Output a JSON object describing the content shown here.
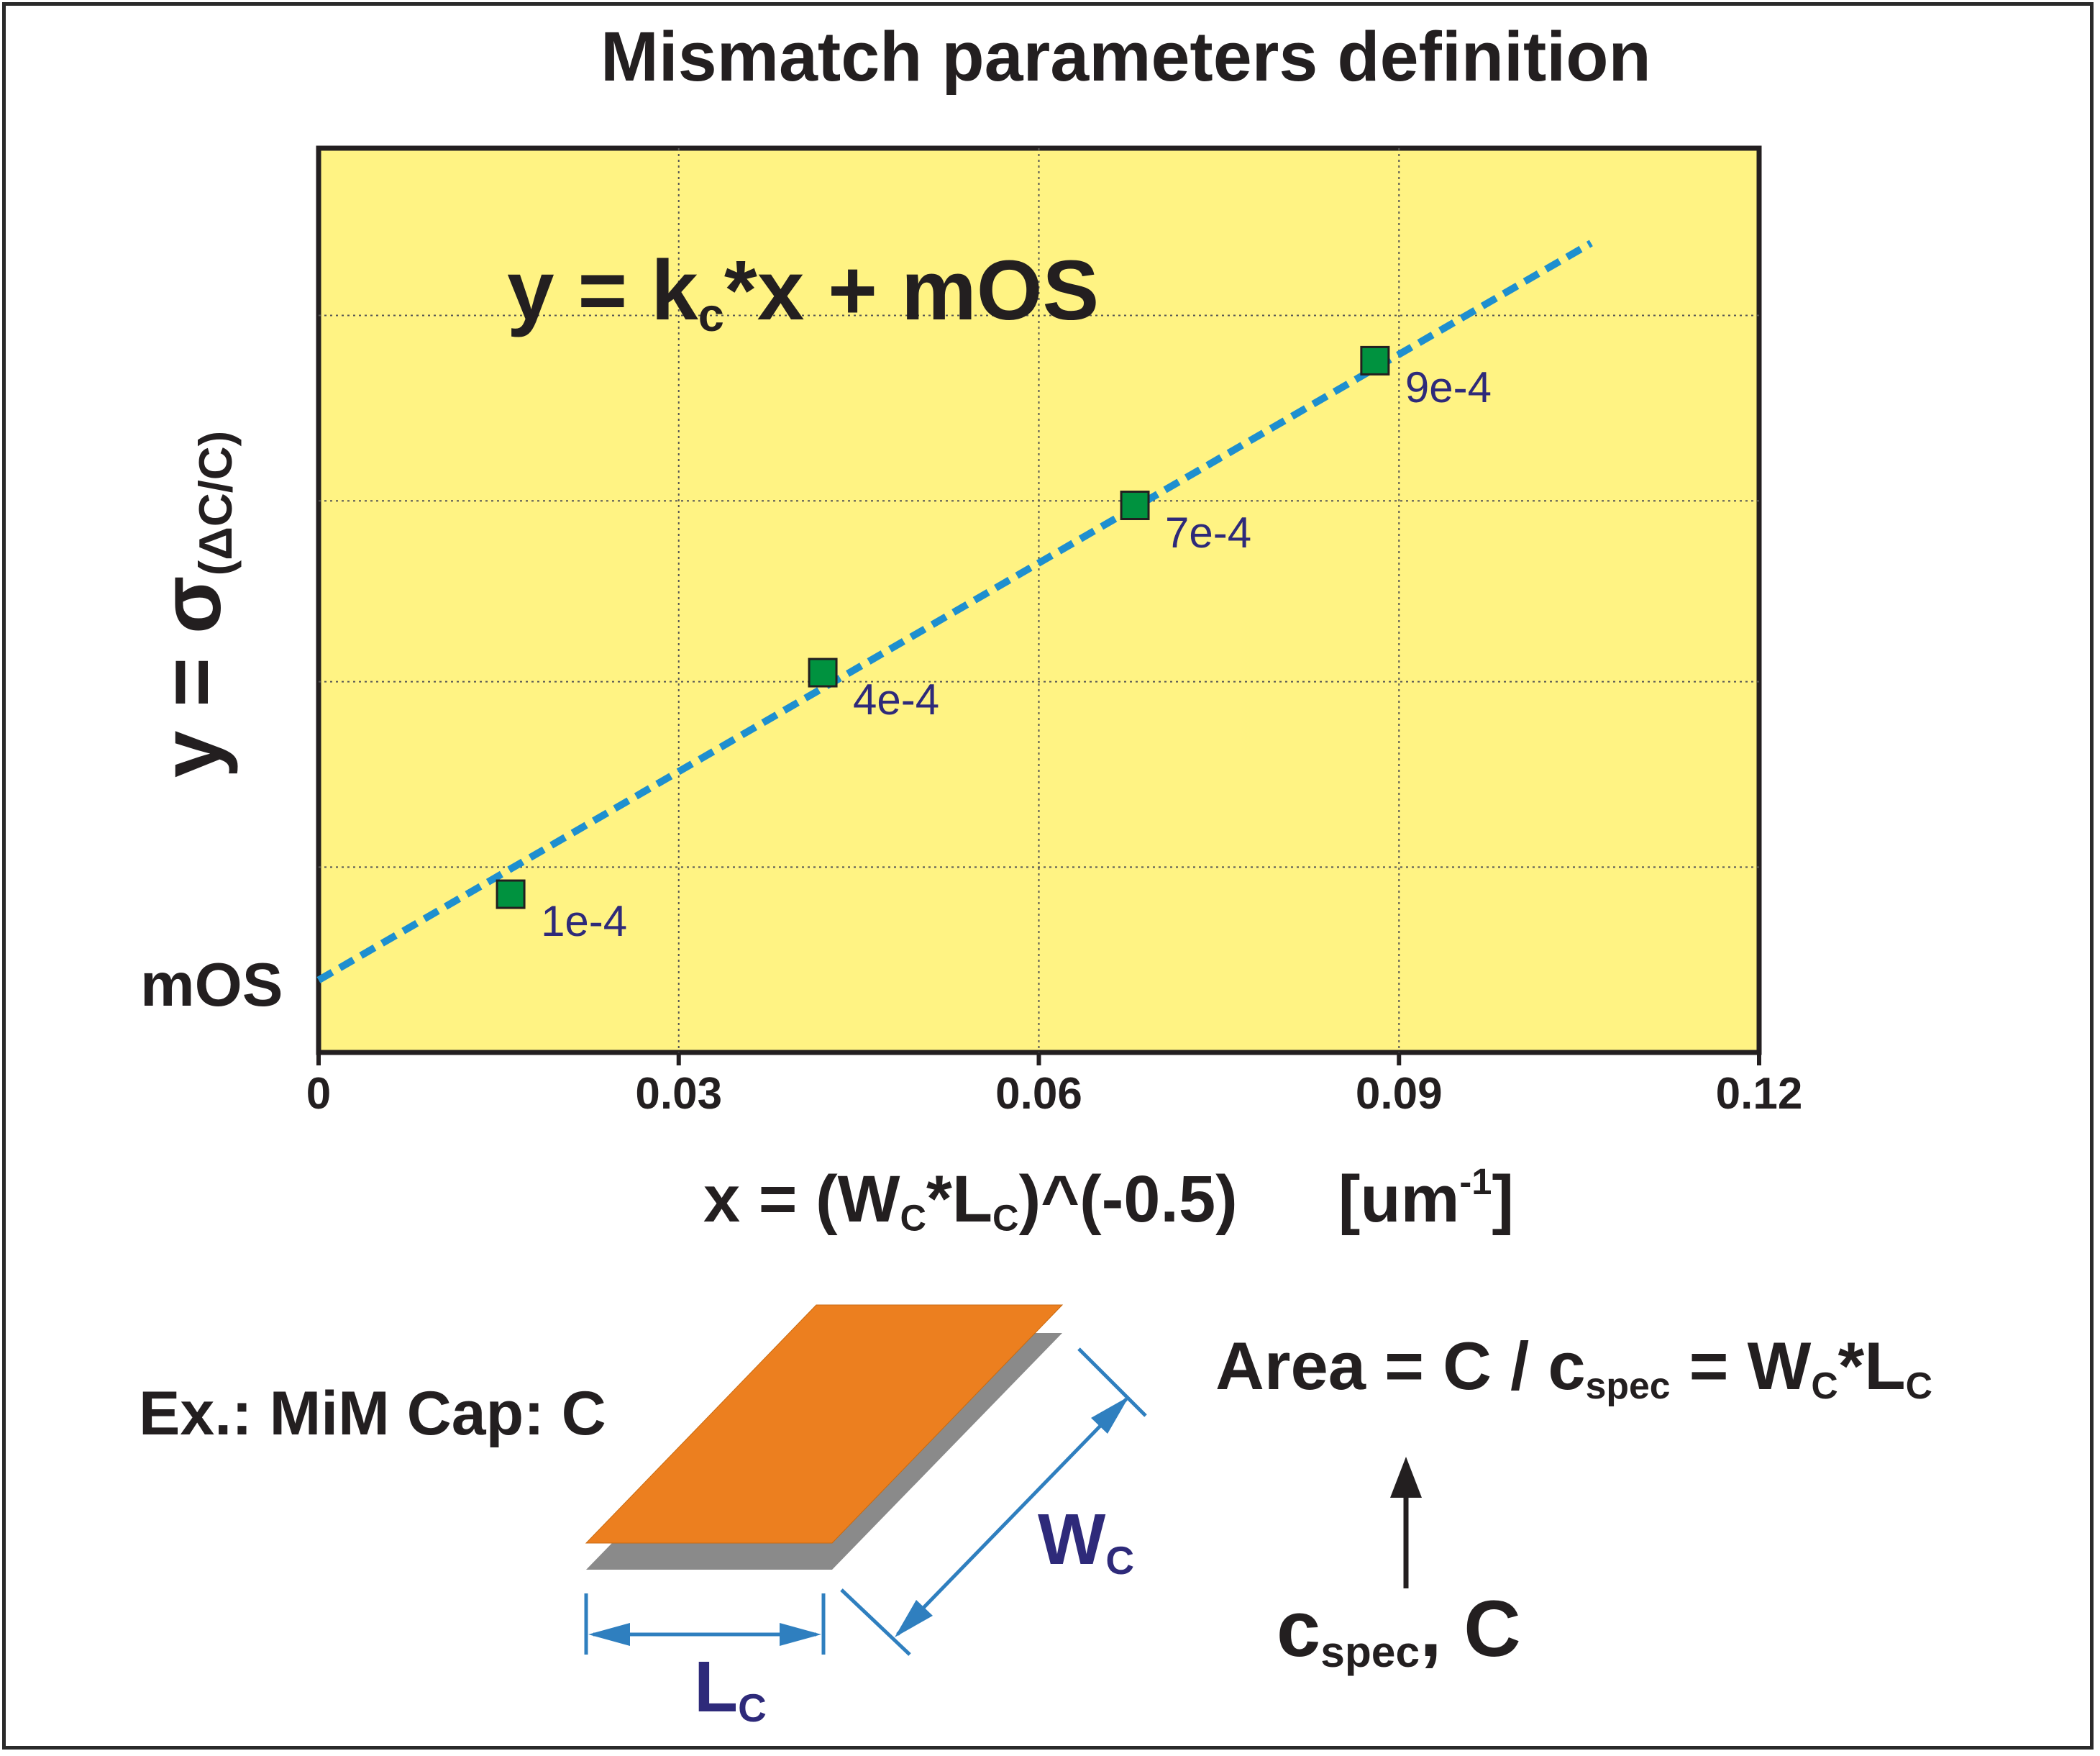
{
  "title": "Mismatch parameters definition",
  "equation": {
    "lhs": "y = k",
    "sub": "c",
    "rhs": "*x  + mOS"
  },
  "y_axis_label": {
    "main": "y = σ",
    "sub": "(ΔC/C)"
  },
  "intercept_label": "mOS",
  "x_axis_label": {
    "p1": "x = (W",
    "s1": "C",
    "p2": "*L",
    "s2": "C",
    "p3": ")^(-0.5)",
    "unit_open": "[um",
    "unit_sup": "-1",
    "unit_close": "]"
  },
  "example_label": "Ex.: MiM Cap: C",
  "area_formula": {
    "p1": "Area = C / c",
    "s1": "spec",
    "p2": " = W",
    "s2": "C",
    "p3": "*L",
    "s3": "C"
  },
  "inputs_label": {
    "p1": "c",
    "s1": "spec",
    "p2": ", C"
  },
  "wc_label": {
    "main": "W",
    "sub": "C"
  },
  "lc_label": {
    "main": "L",
    "sub": "C"
  },
  "colors": {
    "plot_bg": "#fff383",
    "line": "#1e8fcf",
    "marker": "#00923f",
    "plate_top": "#ec7f1f",
    "plate_bottom": "#8a8a8a",
    "dimension": "#2f7fbf",
    "label_navy": "#2e2a7a"
  },
  "chart_data": {
    "type": "scatter",
    "title": "Mismatch parameters definition",
    "xlabel": "x = (WC*LC)^(-0.5)     [um-1]",
    "ylabel": "y = σ(ΔC/C)",
    "xlim": [
      0,
      0.12
    ],
    "x_ticks": [
      "0",
      "0.03",
      "0.06",
      "0.09",
      "0.12"
    ],
    "grid": true,
    "points": [
      {
        "x": 0.016,
        "y": 0.175,
        "label": "1e-4"
      },
      {
        "x": 0.042,
        "y": 0.42,
        "label": "4e-4"
      },
      {
        "x": 0.068,
        "y": 0.605,
        "label": "7e-4"
      },
      {
        "x": 0.088,
        "y": 0.765,
        "label": "9e-4"
      }
    ],
    "fit_line": {
      "equation": "y = kc*x + mOS",
      "x_start": 0,
      "y_start": 0.08,
      "x_end": 0.106,
      "y_end": 0.895
    }
  }
}
